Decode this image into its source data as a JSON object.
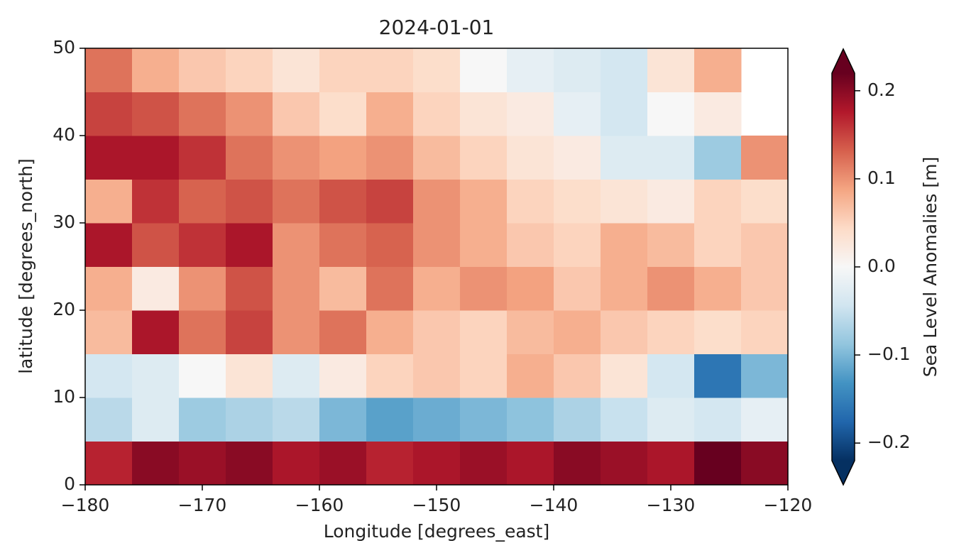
{
  "chart_data": {
    "type": "heatmap",
    "title": "2024-01-01",
    "x_label": "Longitude [degrees_east]",
    "y_label": "latitude [degrees_north]",
    "colorbar_label": "Sea Level Anomalies [m]",
    "x": [
      -178,
      -174,
      -170,
      -166,
      -162,
      -158,
      -154,
      -150,
      -146,
      -142,
      -138,
      -134,
      -130,
      -126,
      -122
    ],
    "y": [
      2.5,
      7.5,
      12.5,
      17.5,
      22.5,
      27.5,
      32.5,
      37.5,
      42.5,
      47.5
    ],
    "values": [
      [
        0.17,
        0.2,
        0.19,
        0.2,
        0.18,
        0.19,
        0.17,
        0.18,
        0.19,
        0.18,
        0.2,
        0.19,
        0.18,
        0.22,
        0.2
      ],
      [
        -0.06,
        -0.03,
        -0.08,
        -0.07,
        -0.06,
        -0.1,
        -0.12,
        -0.11,
        -0.1,
        -0.09,
        -0.07,
        -0.05,
        -0.03,
        -0.04,
        -0.02
      ],
      [
        -0.04,
        -0.03,
        0.0,
        0.03,
        -0.03,
        0.02,
        0.05,
        0.06,
        0.05,
        0.08,
        0.06,
        0.03,
        -0.04,
        -0.16,
        -0.1
      ],
      [
        0.07,
        0.18,
        0.12,
        0.15,
        0.1,
        0.12,
        0.08,
        0.06,
        0.05,
        0.07,
        0.08,
        0.06,
        0.05,
        0.04,
        0.05
      ],
      [
        0.08,
        0.02,
        0.1,
        0.14,
        0.1,
        0.07,
        0.12,
        0.08,
        0.1,
        0.09,
        0.06,
        0.08,
        0.1,
        0.08,
        0.06
      ],
      [
        0.18,
        0.14,
        0.16,
        0.18,
        0.1,
        0.12,
        0.13,
        0.1,
        0.08,
        0.06,
        0.05,
        0.08,
        0.07,
        0.05,
        0.06
      ],
      [
        0.08,
        0.16,
        0.13,
        0.14,
        0.12,
        0.14,
        0.15,
        0.1,
        0.08,
        0.05,
        0.04,
        0.03,
        0.02,
        0.05,
        0.04
      ],
      [
        0.18,
        0.18,
        0.16,
        0.12,
        0.1,
        0.09,
        0.1,
        0.07,
        0.05,
        0.03,
        0.02,
        -0.03,
        -0.03,
        -0.08,
        0.1
      ],
      [
        0.15,
        0.14,
        0.12,
        0.1,
        0.06,
        0.04,
        0.08,
        0.05,
        0.03,
        0.02,
        -0.02,
        -0.04,
        0.0,
        0.02,
        null
      ],
      [
        0.12,
        0.08,
        0.06,
        0.05,
        0.03,
        0.05,
        0.05,
        0.04,
        0.0,
        -0.02,
        -0.03,
        -0.04,
        0.03,
        0.08,
        null
      ]
    ],
    "xlim": [
      -180,
      -120
    ],
    "ylim": [
      0,
      50
    ],
    "xticks": [
      {
        "value": -180,
        "label": "−180"
      },
      {
        "value": -170,
        "label": "−170"
      },
      {
        "value": -160,
        "label": "−160"
      },
      {
        "value": -150,
        "label": "−150"
      },
      {
        "value": -140,
        "label": "−140"
      },
      {
        "value": -130,
        "label": "−130"
      },
      {
        "value": -120,
        "label": "−120"
      }
    ],
    "yticks": [
      0,
      10,
      20,
      30,
      40,
      50
    ],
    "clim": [
      -0.22,
      0.22
    ],
    "cticks": [
      {
        "value": -0.2,
        "label": "−0.2"
      },
      {
        "value": -0.1,
        "label": "−0.1"
      },
      {
        "value": 0,
        "label": "0.0"
      },
      0.1,
      0.2
    ],
    "colorbar_extend": "both",
    "colors": [
      "#053061",
      "#2166ac",
      "#4393c3",
      "#92c5de",
      "#d1e5f0",
      "#f7f7f7",
      "#fddbc7",
      "#f4a582",
      "#d6604d",
      "#b2182b",
      "#67001f"
    ]
  }
}
